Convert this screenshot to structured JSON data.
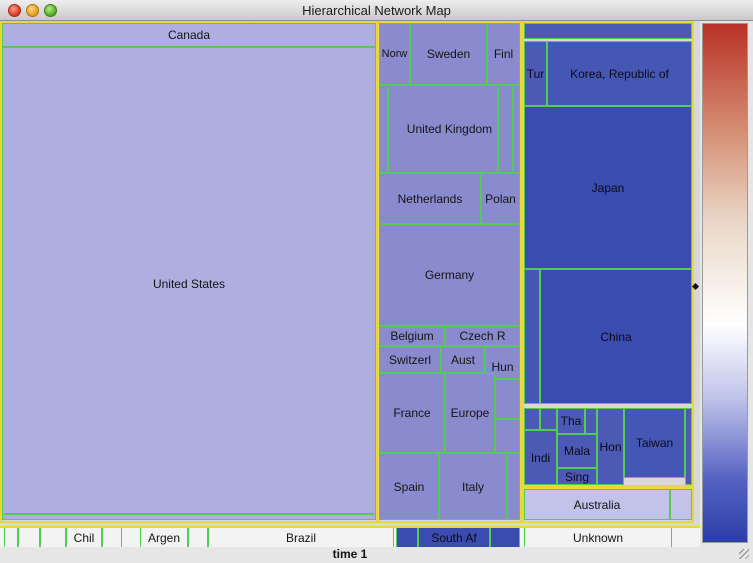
{
  "window": {
    "title": "Hierarchical Network Map"
  },
  "map": {
    "cells": {
      "canada": "Canada",
      "united_states": "United States",
      "norway": "Norw",
      "sweden": "Sweden",
      "finland": "Finl",
      "united_kingdom": "United Kingdom",
      "netherlands": "Netherlands",
      "poland": "Polan",
      "germany": "Germany",
      "belgium": "Belgium",
      "czech": "Czech R",
      "switzerland": "Switzerl",
      "austria": "Aust",
      "hungary": "Hun",
      "france": "France",
      "europe": "Europe",
      "spain": "Spain",
      "italy": "Italy",
      "turkey": "Tur",
      "korea": "Korea, Republic of",
      "japan": "Japan",
      "china": "China",
      "thailand": "Tha",
      "india": "Indi",
      "malaysia": "Mala",
      "singapore": "Sing",
      "hong_kong": "Hon",
      "taiwan": "Taiwan",
      "australia": "Australia"
    },
    "bottom": {
      "chile": "Chil",
      "argentina": "Argen",
      "brazil": "Brazil",
      "south_africa": "South Af",
      "unknown": "Unknown"
    }
  },
  "footer": {
    "time_label": "time 1"
  },
  "colors": {
    "cell_border": "#52cc52",
    "group_border": "#e8d83a",
    "scale_high": "#b83227",
    "scale_mid": "#ffffff",
    "scale_low": "#2c3ea8"
  }
}
